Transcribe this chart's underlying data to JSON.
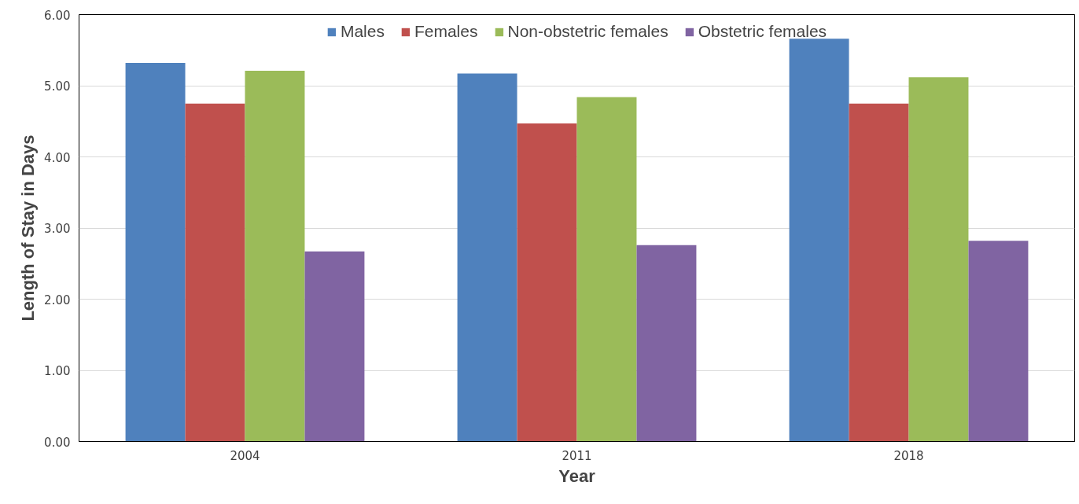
{
  "chart_data": {
    "type": "bar",
    "xlabel": "Year",
    "ylabel": "Length of Stay in Days",
    "categories": [
      "2004",
      "2011",
      "2018"
    ],
    "series": [
      {
        "name": "Males",
        "color": "#4f81bd",
        "values": [
          5.32,
          5.17,
          5.66
        ]
      },
      {
        "name": "Females",
        "color": "#c0504d",
        "values": [
          4.75,
          4.47,
          4.75
        ]
      },
      {
        "name": "Non-obstetric females",
        "color": "#9bbb59",
        "values": [
          5.21,
          4.84,
          5.12
        ]
      },
      {
        "name": "Obstetric females",
        "color": "#8064a2",
        "values": [
          2.67,
          2.76,
          2.82
        ]
      }
    ],
    "ylim": [
      0,
      6
    ],
    "yticks": [
      {
        "value": 0,
        "label": "0.00"
      },
      {
        "value": 1,
        "label": "1.00"
      },
      {
        "value": 2,
        "label": "2.00"
      },
      {
        "value": 3,
        "label": "3.00"
      },
      {
        "value": 4,
        "label": "4.00"
      },
      {
        "value": 5,
        "label": "5.00"
      },
      {
        "value": 6,
        "label": "6.00"
      }
    ],
    "grid": "y",
    "legend": "top"
  }
}
